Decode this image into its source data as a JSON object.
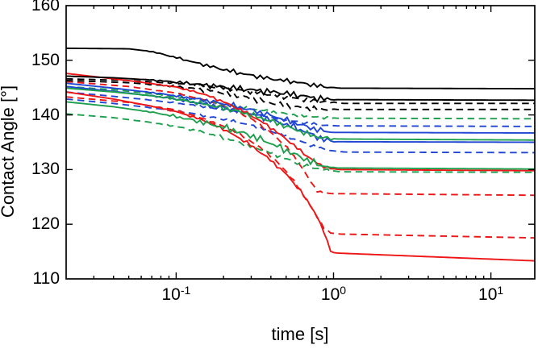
{
  "chart_data": {
    "type": "line",
    "title": "",
    "xlabel": "time [s]",
    "ylabel": "Contact Angle [°]",
    "x_scale": "log",
    "xlim": [
      0.02,
      19
    ],
    "ylim": [
      110,
      160
    ],
    "y_ticks": [
      110,
      120,
      130,
      140,
      150,
      160
    ],
    "x_major_ticks": [
      0.1,
      1,
      10
    ],
    "x_tick_labels": [
      {
        "t": 0.1,
        "base": "10",
        "exp": "-1"
      },
      {
        "t": 1,
        "base": "10",
        "exp": "0"
      },
      {
        "t": 10,
        "base": "10",
        "exp": "1"
      }
    ],
    "grid": false,
    "legend": "none",
    "axis_color": "#000000",
    "background": "#ffffff",
    "series": [
      {
        "name": "blue-dashed-1",
        "color": "#2146d4",
        "style": "dashed",
        "noise": 0.2,
        "seed": 1,
        "points": [
          [
            0.02,
            144.2
          ],
          [
            0.04,
            143.4
          ],
          [
            0.07,
            142.7
          ],
          [
            0.12,
            141.9
          ],
          [
            0.2,
            141.0
          ],
          [
            0.3,
            140.2
          ],
          [
            0.45,
            139.3
          ],
          [
            0.6,
            138.7
          ],
          [
            0.8,
            138.2
          ],
          [
            1.0,
            138.0
          ],
          [
            19,
            137.9
          ]
        ]
      },
      {
        "name": "blue-dashed-2",
        "color": "#2146d4",
        "style": "dashed",
        "noise": 0.2,
        "seed": 2,
        "points": [
          [
            0.02,
            142.9
          ],
          [
            0.04,
            142.1
          ],
          [
            0.07,
            141.3
          ],
          [
            0.12,
            140.4
          ],
          [
            0.2,
            139.2
          ],
          [
            0.3,
            138.1
          ],
          [
            0.45,
            136.6
          ],
          [
            0.6,
            135.3
          ],
          [
            0.8,
            134.0
          ],
          [
            1.0,
            133.4
          ],
          [
            1.2,
            133.2
          ],
          [
            19,
            133.1
          ]
        ]
      },
      {
        "name": "red-dashed-1",
        "color": "#ed1515",
        "style": "dashed",
        "noise": 0.15,
        "seed": 3,
        "points": [
          [
            0.02,
            146.1
          ],
          [
            0.05,
            145.2
          ],
          [
            0.1,
            144.0
          ],
          [
            0.15,
            142.8
          ],
          [
            0.22,
            141.2
          ],
          [
            0.3,
            139.3
          ],
          [
            0.4,
            136.8
          ],
          [
            0.5,
            134.2
          ],
          [
            0.6,
            131.3
          ],
          [
            0.7,
            128.2
          ],
          [
            0.78,
            126.2
          ],
          [
            0.85,
            125.7
          ],
          [
            1.0,
            125.6
          ],
          [
            19,
            125.3
          ]
        ]
      },
      {
        "name": "red-dashed-2",
        "color": "#ed1515",
        "style": "dashed",
        "noise": 0.15,
        "seed": 4,
        "points": [
          [
            0.02,
            143.3
          ],
          [
            0.05,
            142.3
          ],
          [
            0.1,
            140.9
          ],
          [
            0.15,
            139.3
          ],
          [
            0.22,
            137.4
          ],
          [
            0.3,
            135.2
          ],
          [
            0.4,
            132.5
          ],
          [
            0.5,
            129.7
          ],
          [
            0.6,
            126.7
          ],
          [
            0.7,
            123.7
          ],
          [
            0.8,
            121.0
          ],
          [
            0.88,
            119.2
          ],
          [
            0.95,
            118.4
          ],
          [
            1.1,
            118.2
          ],
          [
            19,
            117.5
          ]
        ]
      },
      {
        "name": "green-dashed-1",
        "color": "#1da04e",
        "style": "dashed",
        "noise": 0.2,
        "seed": 5,
        "points": [
          [
            0.02,
            145.2
          ],
          [
            0.04,
            144.6
          ],
          [
            0.07,
            143.9
          ],
          [
            0.12,
            143.0
          ],
          [
            0.2,
            142.0
          ],
          [
            0.32,
            141.0
          ],
          [
            0.45,
            140.4
          ],
          [
            0.6,
            139.9
          ],
          [
            0.8,
            139.6
          ],
          [
            1.05,
            139.4
          ],
          [
            19,
            139.3
          ]
        ]
      },
      {
        "name": "green-dashed-2",
        "color": "#1da04e",
        "style": "dashed",
        "noise": 0.25,
        "seed": 6,
        "points": [
          [
            0.02,
            140.2
          ],
          [
            0.04,
            139.5
          ],
          [
            0.07,
            138.6
          ],
          [
            0.1,
            137.9
          ],
          [
            0.15,
            136.8
          ],
          [
            0.22,
            135.5
          ],
          [
            0.3,
            134.3
          ],
          [
            0.42,
            132.8
          ],
          [
            0.55,
            131.5
          ],
          [
            0.7,
            130.5
          ],
          [
            0.9,
            129.9
          ],
          [
            1.1,
            129.6
          ],
          [
            19,
            129.5
          ]
        ]
      },
      {
        "name": "black-dashed-1",
        "color": "#000000",
        "style": "dashed",
        "noise": 0.3,
        "seed": 7,
        "points": [
          [
            0.02,
            146.6
          ],
          [
            0.05,
            146.3
          ],
          [
            0.1,
            145.8
          ],
          [
            0.18,
            145.1
          ],
          [
            0.28,
            144.4
          ],
          [
            0.4,
            143.7
          ],
          [
            0.55,
            143.1
          ],
          [
            0.75,
            142.6
          ],
          [
            1.0,
            142.3
          ],
          [
            1.15,
            142.1
          ],
          [
            19,
            142.1
          ]
        ]
      },
      {
        "name": "black-dashed-2",
        "color": "#000000",
        "style": "dashed",
        "noise": 0.35,
        "seed": 8,
        "points": [
          [
            0.02,
            146.3
          ],
          [
            0.05,
            145.9
          ],
          [
            0.1,
            145.2
          ],
          [
            0.18,
            144.3
          ],
          [
            0.28,
            143.2
          ],
          [
            0.4,
            142.2
          ],
          [
            0.55,
            141.5
          ],
          [
            0.75,
            141.1
          ],
          [
            1.0,
            141.0
          ],
          [
            19,
            141.0
          ]
        ]
      },
      {
        "name": "blue-solid-1",
        "color": "#2146d4",
        "style": "solid",
        "noise": 0.35,
        "seed": 9,
        "points": [
          [
            0.02,
            145.8
          ],
          [
            0.04,
            144.9
          ],
          [
            0.07,
            144.1
          ],
          [
            0.1,
            143.5
          ],
          [
            0.15,
            142.7
          ],
          [
            0.22,
            141.8
          ],
          [
            0.3,
            140.9
          ],
          [
            0.4,
            139.9
          ],
          [
            0.55,
            138.7
          ],
          [
            0.7,
            137.7
          ],
          [
            0.85,
            137.1
          ],
          [
            1.0,
            136.8
          ],
          [
            19,
            136.7
          ]
        ]
      },
      {
        "name": "blue-solid-2",
        "color": "#2146d4",
        "style": "solid",
        "noise": 0.4,
        "seed": 10,
        "points": [
          [
            0.02,
            145.2
          ],
          [
            0.04,
            144.3
          ],
          [
            0.07,
            143.5
          ],
          [
            0.1,
            142.9
          ],
          [
            0.15,
            142.0
          ],
          [
            0.22,
            141.1
          ],
          [
            0.3,
            140.2
          ],
          [
            0.4,
            139.1
          ],
          [
            0.55,
            137.9
          ],
          [
            0.7,
            136.6
          ],
          [
            0.85,
            135.6
          ],
          [
            1.0,
            135.1
          ],
          [
            19,
            135.0
          ]
        ]
      },
      {
        "name": "red-solid-1",
        "color": "#ed1515",
        "style": "solid",
        "noise": 0.2,
        "seed": 11,
        "points": [
          [
            0.02,
            147.6
          ],
          [
            0.035,
            146.8
          ],
          [
            0.06,
            146.0
          ],
          [
            0.1,
            145.1
          ],
          [
            0.15,
            143.8
          ],
          [
            0.2,
            142.4
          ],
          [
            0.28,
            140.4
          ],
          [
            0.38,
            138.1
          ],
          [
            0.5,
            135.6
          ],
          [
            0.65,
            132.9
          ],
          [
            0.8,
            131.0
          ],
          [
            0.95,
            130.2
          ],
          [
            1.1,
            130.0
          ],
          [
            19,
            129.8
          ]
        ]
      },
      {
        "name": "red-solid-2",
        "color": "#ed1515",
        "style": "solid",
        "noise": 0.2,
        "seed": 12,
        "points": [
          [
            0.02,
            144.2
          ],
          [
            0.04,
            142.9
          ],
          [
            0.07,
            141.6
          ],
          [
            0.1,
            140.6
          ],
          [
            0.15,
            139.0
          ],
          [
            0.2,
            137.4
          ],
          [
            0.28,
            135.0
          ],
          [
            0.38,
            132.2
          ],
          [
            0.5,
            129.2
          ],
          [
            0.62,
            126.0
          ],
          [
            0.75,
            122.5
          ],
          [
            0.85,
            119.3
          ],
          [
            0.93,
            116.2
          ],
          [
            0.97,
            114.8
          ],
          [
            1.1,
            114.7
          ],
          [
            19,
            113.3
          ]
        ]
      },
      {
        "name": "green-solid-1",
        "color": "#1da04e",
        "style": "solid",
        "noise": 0.35,
        "seed": 13,
        "points": [
          [
            0.02,
            144.9
          ],
          [
            0.04,
            144.2
          ],
          [
            0.07,
            143.5
          ],
          [
            0.1,
            142.9
          ],
          [
            0.15,
            142.0
          ],
          [
            0.22,
            141.0
          ],
          [
            0.3,
            140.0
          ],
          [
            0.4,
            138.9
          ],
          [
            0.55,
            137.5
          ],
          [
            0.7,
            136.4
          ],
          [
            0.85,
            135.8
          ],
          [
            1.0,
            135.6
          ],
          [
            19,
            135.4
          ]
        ]
      },
      {
        "name": "green-solid-2",
        "color": "#1da04e",
        "style": "solid",
        "noise": 0.45,
        "seed": 14,
        "points": [
          [
            0.02,
            142.4
          ],
          [
            0.04,
            141.5
          ],
          [
            0.07,
            140.5
          ],
          [
            0.1,
            139.7
          ],
          [
            0.15,
            138.6
          ],
          [
            0.22,
            137.4
          ],
          [
            0.3,
            136.2
          ],
          [
            0.4,
            134.8
          ],
          [
            0.5,
            133.5
          ],
          [
            0.65,
            132.0
          ],
          [
            0.8,
            130.9
          ],
          [
            1.0,
            130.3
          ],
          [
            19,
            130.1
          ]
        ]
      },
      {
        "name": "black-solid-1",
        "color": "#000000",
        "style": "solid",
        "noise": 0.28,
        "seed": 15,
        "points": [
          [
            0.02,
            152.2
          ],
          [
            0.05,
            152.1
          ],
          [
            0.07,
            151.6
          ],
          [
            0.1,
            150.5
          ],
          [
            0.14,
            149.4
          ],
          [
            0.2,
            148.3
          ],
          [
            0.28,
            147.4
          ],
          [
            0.4,
            146.6
          ],
          [
            0.55,
            146.1
          ],
          [
            0.7,
            145.6
          ],
          [
            0.85,
            145.2
          ],
          [
            1.0,
            145.0
          ],
          [
            1.1,
            144.9
          ],
          [
            19,
            144.8
          ]
        ]
      },
      {
        "name": "black-solid-2",
        "color": "#000000",
        "style": "solid",
        "noise": 0.4,
        "seed": 16,
        "points": [
          [
            0.02,
            147.1
          ],
          [
            0.04,
            146.8
          ],
          [
            0.07,
            146.4
          ],
          [
            0.1,
            146.0
          ],
          [
            0.15,
            145.5
          ],
          [
            0.22,
            145.0
          ],
          [
            0.3,
            144.6
          ],
          [
            0.45,
            144.1
          ],
          [
            0.6,
            143.6
          ],
          [
            0.8,
            143.0
          ],
          [
            1.0,
            142.8
          ],
          [
            19,
            142.7
          ]
        ]
      }
    ]
  }
}
